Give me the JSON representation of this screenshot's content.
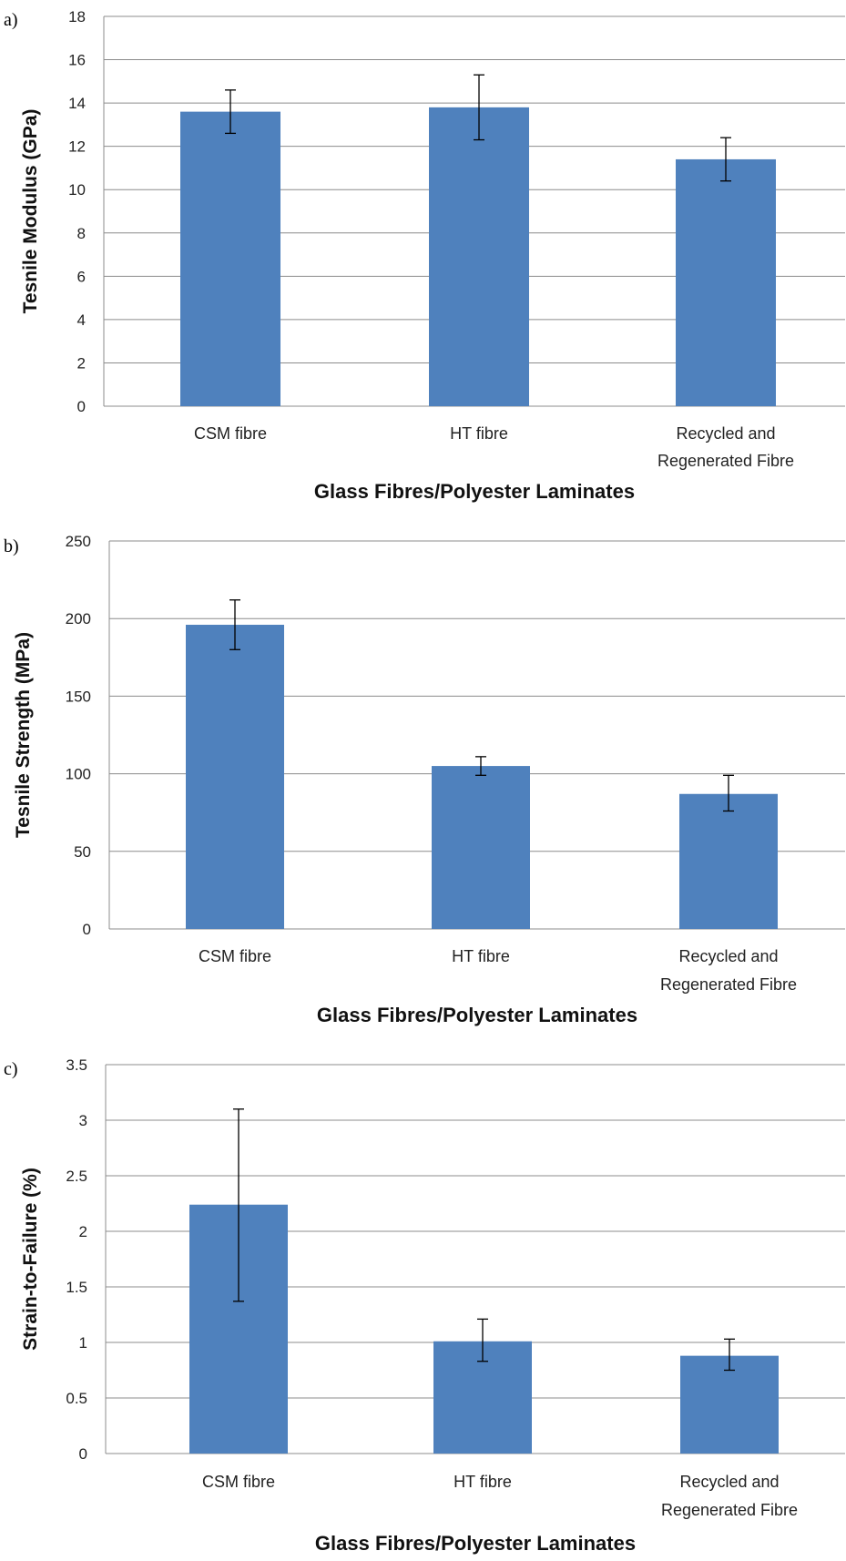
{
  "panels": [
    {
      "label": "a)"
    },
    {
      "label": "b)"
    },
    {
      "label": "c)"
    }
  ],
  "chart_data": [
    {
      "type": "bar",
      "categories": [
        "CSM fibre",
        "HT fibre",
        [
          "Recycled and",
          "Regenerated Fibre"
        ]
      ],
      "values": [
        13.6,
        13.8,
        11.4
      ],
      "error_low": [
        12.6,
        12.3,
        10.4
      ],
      "error_high": [
        14.6,
        15.3,
        12.4
      ],
      "ylim": [
        0,
        18
      ],
      "yticks": [
        0,
        2,
        4,
        6,
        8,
        10,
        12,
        14,
        16,
        18
      ],
      "ytick_labels": [
        "0",
        "2",
        "4",
        "6",
        "8",
        "10",
        "12",
        "14",
        "16",
        "18"
      ],
      "ylabel": "Tesnile Modulus (GPa)",
      "xlabel": "Glass Fibres/Polyester Laminates",
      "grid": true,
      "bar_color": "#4f81bd"
    },
    {
      "type": "bar",
      "categories": [
        "CSM fibre",
        "HT fibre",
        [
          "Recycled and",
          "Regenerated Fibre"
        ]
      ],
      "values": [
        196,
        105,
        87
      ],
      "error_low": [
        180,
        99,
        76
      ],
      "error_high": [
        212,
        111,
        99
      ],
      "ylim": [
        0,
        250
      ],
      "yticks": [
        0,
        50,
        100,
        150,
        200,
        250
      ],
      "ytick_labels": [
        "0",
        "50",
        "100",
        "150",
        "200",
        "250"
      ],
      "ylabel": "Tesnile Strength (MPa)",
      "xlabel": "Glass Fibres/Polyester Laminates",
      "grid": true,
      "bar_color": "#4f81bd"
    },
    {
      "type": "bar",
      "categories": [
        "CSM fibre",
        "HT fibre",
        [
          "Recycled and",
          "Regenerated Fibre"
        ]
      ],
      "values": [
        2.24,
        1.01,
        0.88
      ],
      "error_low": [
        1.37,
        0.83,
        0.75
      ],
      "error_high": [
        3.1,
        1.21,
        1.03
      ],
      "ylim": [
        0,
        3.5
      ],
      "yticks": [
        0,
        0.5,
        1,
        1.5,
        2,
        2.5,
        3,
        3.5
      ],
      "ytick_labels": [
        "0",
        "0.5",
        "1",
        "1.5",
        "2",
        "2.5",
        "3",
        "3.5"
      ],
      "ylabel": "Strain-to-Failure  (%)",
      "xlabel": "Glass Fibres/Polyester Laminates",
      "grid": true,
      "bar_color": "#4f81bd"
    }
  ]
}
